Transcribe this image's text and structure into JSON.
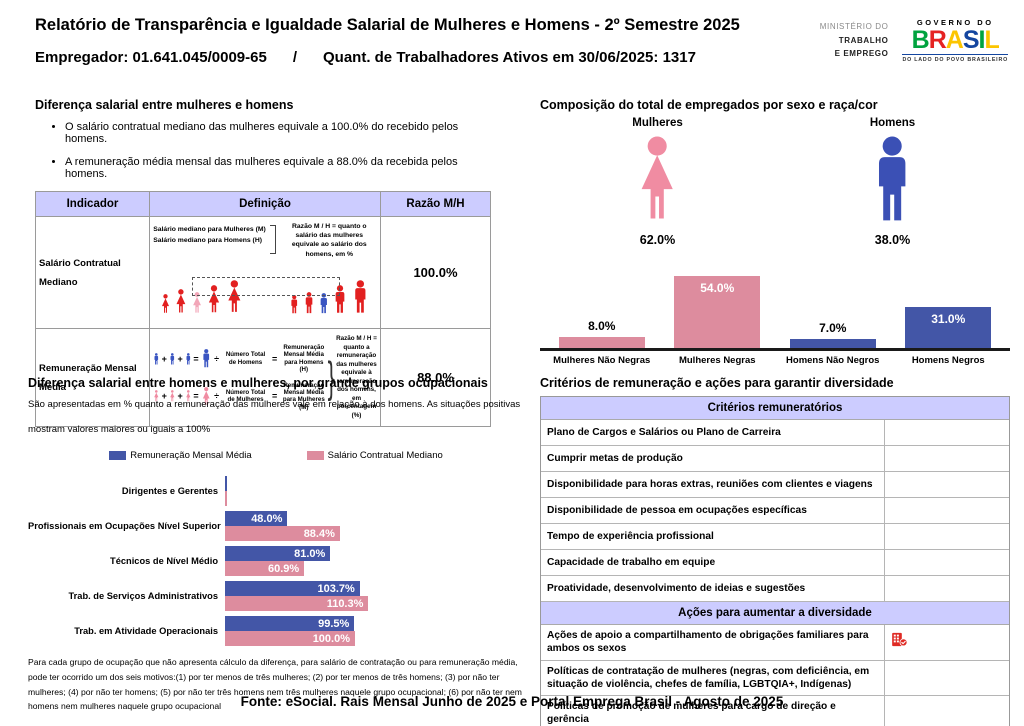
{
  "page": {
    "title": "Relatório de Transparência e Igualdade Salarial de Mulheres e Homens - 2º Semestre 2025",
    "employer_line": "Empregador: 01.641.045/0009-65",
    "separator": "/",
    "active_workers_line": "Quant. de Trabalhadores Ativos em 30/06/2025: 1317",
    "footer": "Fonte: eSocial. Rais Mensal Junho de 2025 e Portal Emprega Brasil - Agosto de 2025"
  },
  "logo": {
    "ministry_line1": "MINISTÉRIO DO",
    "ministry_line2": "TRABALHO",
    "ministry_line3": "E EMPREGO",
    "gov_top": "GOVERNO DO",
    "gov_brand": "BRASIL",
    "gov_tagline": "DO LADO DO POVO BRASILEIRO",
    "brand_colors": [
      "#00a33f",
      "#e52322",
      "#fcc500",
      "#1446a0",
      "#00a33f",
      "#fcc500"
    ]
  },
  "salary_diff": {
    "title": "Diferença salarial entre mulheres e homens",
    "bullets": [
      "O salário contratual mediano das mulheres equivale a 100.0% do recebido pelos homens.",
      "A remuneração média mensal das mulheres equivale a 88.0% da recebida pelos homens."
    ],
    "table": {
      "col_indicator": "Indicador",
      "col_definition": "Definição",
      "col_ratio": "Razão M/H",
      "row1": {
        "indicator": "Salário Contratual Mediano",
        "line_women": "Salário mediano para Mulheres (M)",
        "line_men": "Salário mediano para Homens (H)",
        "note": "Razão M / H = quanto o salário das mulheres equivale ao salário dos homens, em %",
        "ratio": "100.0%"
      },
      "row2": {
        "indicator": "Remuneração Mensal Média",
        "divide_men": "Número Total de Homens",
        "result_men": "Remuneração Mensal Média para Homens (H)",
        "divide_women": "Número Total de Mulheres",
        "result_women": "Remuneração Mensal Média para Mulheres (M)",
        "note": "Razão M / H = quanto a remuneração das mulheres equivale à remuneração dos homens, em porcentagem (%)",
        "ratio": "88.0%"
      }
    }
  },
  "composition": {
    "title": "Composição do total de empregados por sexo e raça/cor",
    "women_label": "Mulheres",
    "women_value": "62.0%",
    "men_label": "Homens",
    "men_value": "38.0%"
  },
  "occupational": {
    "title": "Diferença salarial entre homens e mulheres, por grande grupos ocupacionais",
    "intro_line1": "São apresentadas em % quanto a remuneração das mulheres vale em relação à dos homens. As situações positivas",
    "intro_line2": "mostram valores maiores ou iguais a 100%",
    "footnote": "Para cada grupo de ocupação que não apresenta cálculo da diferença, para salário de contratação ou para remuneração média, pode ter ocorrido um dos seis motivos:(1) por ter menos de três mulheres; (2) por ter menos de três homens; (3) por não ter mulheres; (4) por não ter homens; (5) por não ter três homens nem três mulheres naquele grupo ocupacional; (6) por não ter nem homens nem mulheres naquele grupo ocupacional"
  },
  "criteria": {
    "title": "Critérios de remuneração e ações para garantir diversidade",
    "sections": [
      {
        "title": "Critérios remuneratórios",
        "rows": [
          {
            "label": "Plano de Cargos e Salários ou Plano de Carreira",
            "icon": false
          },
          {
            "label": "Cumprir metas de produção",
            "icon": false
          },
          {
            "label": "Disponibilidade para horas extras, reuniões com clientes e viagens",
            "icon": false
          },
          {
            "label": "Disponibilidade de pessoa em ocupações específicas",
            "icon": false
          },
          {
            "label": "Tempo de experiência profissional",
            "icon": false
          },
          {
            "label": "Capacidade de trabalho em equipe",
            "icon": false
          },
          {
            "label": "Proatividade, desenvolvimento de ideias e sugestões",
            "icon": false
          }
        ]
      },
      {
        "title": "Ações para aumentar a diversidade",
        "rows": [
          {
            "label": "Ações de apoio a compartilhamento de obrigações familiares para ambos os sexos",
            "icon": true
          },
          {
            "label": "Políticas de contratação de mulheres (negras, com deficiência, em situação de violência, chefes de família, LGBTQIA+, Indígenas)",
            "icon": false
          },
          {
            "label": "Políticas de promoção de mulheres para cargo de direção e gerência",
            "icon": false
          }
        ]
      }
    ]
  },
  "chart_data": [
    {
      "type": "bar",
      "title": "Composição do total de empregados por sexo e raça/cor",
      "categories": [
        "Mulheres Não Negras",
        "Mulheres Negras",
        "Homens Não Negros",
        "Homens Negros"
      ],
      "values": [
        8.0,
        54.0,
        7.0,
        31.0
      ],
      "unit": "%",
      "colors": [
        "#dd8c9e",
        "#dd8c9e",
        "#4356a7",
        "#4356a7"
      ],
      "ylim": [
        0,
        60
      ],
      "grid": false
    },
    {
      "type": "bar",
      "orientation": "horizontal",
      "title": "Diferença salarial entre homens e mulheres, por grande grupos ocupacionais",
      "categories": [
        "Dirigentes e Gerentes",
        "Profissionais em Ocupações Nível Superior",
        "Técnicos de Nível Médio",
        "Trab. de Serviços Administrativos",
        "Trab. em Atividade Operacionais"
      ],
      "series": [
        {
          "name": "Remuneração Mensal Média",
          "color": "#4356a7",
          "values": [
            null,
            48.0,
            81.0,
            103.7,
            99.5
          ]
        },
        {
          "name": "Salário Contratual Mediano",
          "color": "#dd8c9e",
          "values": [
            null,
            88.4,
            60.9,
            110.3,
            100.0
          ]
        }
      ],
      "unit": "%",
      "xlim": [
        0,
        115
      ],
      "legend_position": "top",
      "grid": false
    },
    {
      "type": "pictogram",
      "title": "Composição do total de empregados por sexo",
      "categories": [
        "Mulheres",
        "Homens"
      ],
      "values": [
        62.0,
        38.0
      ],
      "unit": "%",
      "colors": [
        "#f08ca2",
        "#3b50b5"
      ]
    }
  ]
}
